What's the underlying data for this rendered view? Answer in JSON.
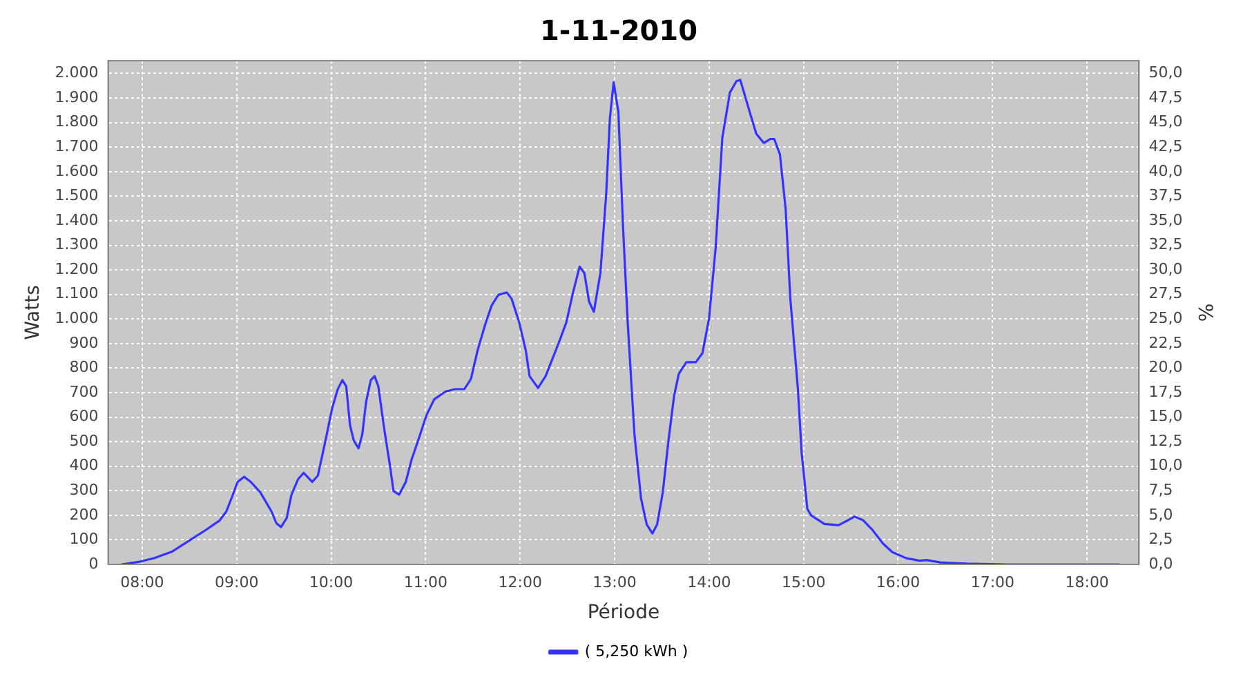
{
  "chart_data": {
    "type": "line",
    "title": "1-11-2010",
    "xlabel": "Période",
    "ylabel": "Watts",
    "y2label": "%",
    "x": [
      7.78,
      7.96,
      8.13,
      8.32,
      8.53,
      8.68,
      8.82,
      8.89,
      8.96,
      9.01,
      9.08,
      9.15,
      9.25,
      9.37,
      9.42,
      9.47,
      9.53,
      9.58,
      9.65,
      9.71,
      9.8,
      9.86,
      9.94,
      10.01,
      10.07,
      10.12,
      10.16,
      10.2,
      10.24,
      10.29,
      10.33,
      10.37,
      10.42,
      10.46,
      10.5,
      10.56,
      10.62,
      10.66,
      10.72,
      10.79,
      10.85,
      10.92,
      11.01,
      11.09,
      11.21,
      11.31,
      11.41,
      11.48,
      11.55,
      11.63,
      11.7,
      11.77,
      11.86,
      11.91,
      11.99,
      12.06,
      12.1,
      12.19,
      12.27,
      12.35,
      12.42,
      12.49,
      12.56,
      12.63,
      12.68,
      12.73,
      12.78,
      12.85,
      12.91,
      12.95,
      12.99,
      13.04,
      13.09,
      13.14,
      13.21,
      13.28,
      13.34,
      13.4,
      13.45,
      13.51,
      13.57,
      13.63,
      13.68,
      13.76,
      13.86,
      13.93,
      14,
      14.07,
      14.14,
      14.22,
      14.29,
      14.33,
      14.37,
      14.43,
      14.5,
      14.58,
      14.65,
      14.69,
      14.75,
      14.81,
      14.86,
      14.94,
      14.98,
      15.04,
      15.08,
      15.22,
      15.37,
      15.47,
      15.54,
      15.63,
      15.73,
      15.84,
      15.94,
      16.09,
      16.23,
      16.3,
      16.45,
      16.73,
      17.17,
      18.35
    ],
    "series": [
      {
        "name": "( 5,250 kWh )",
        "color": "#3333ff",
        "values": [
          0,
          10,
          26,
          53,
          105,
          142,
          179,
          215,
          284,
          336,
          357,
          336,
          294,
          215,
          168,
          152,
          189,
          284,
          347,
          373,
          336,
          362,
          504,
          635,
          714,
          751,
          725,
          567,
          504,
          473,
          530,
          662,
          751,
          767,
          725,
          557,
          410,
          299,
          284,
          336,
          425,
          504,
          609,
          672,
          704,
          714,
          714,
          756,
          872,
          977,
          1056,
          1098,
          1108,
          1082,
          987,
          872,
          767,
          719,
          767,
          845,
          914,
          987,
          1108,
          1213,
          1187,
          1071,
          1029,
          1187,
          1502,
          1817,
          1964,
          1843,
          1370,
          977,
          531,
          268,
          163,
          126,
          163,
          294,
          504,
          688,
          777,
          824,
          824,
          861,
          1003,
          1292,
          1738,
          1922,
          1969,
          1974,
          1922,
          1843,
          1754,
          1717,
          1733,
          1733,
          1670,
          1449,
          1082,
          714,
          452,
          226,
          200,
          165,
          160,
          180,
          195,
          180,
          140,
          85,
          50,
          25,
          15,
          18,
          8,
          3,
          0,
          0
        ]
      }
    ],
    "xlim": [
      7.64,
      18.55
    ],
    "xticks": [
      {
        "value": 8,
        "label": "08:00"
      },
      {
        "value": 9,
        "label": "09:00"
      },
      {
        "value": 10,
        "label": "10:00"
      },
      {
        "value": 11,
        "label": "11:00"
      },
      {
        "value": 12,
        "label": "12:00"
      },
      {
        "value": 13,
        "label": "13:00"
      },
      {
        "value": 14,
        "label": "14:00"
      },
      {
        "value": 15,
        "label": "15:00"
      },
      {
        "value": 16,
        "label": "16:00"
      },
      {
        "value": 17,
        "label": "17:00"
      },
      {
        "value": 18,
        "label": "18:00"
      }
    ],
    "ylim": [
      0,
      2052
    ],
    "yticks": [
      0,
      100,
      200,
      300,
      400,
      500,
      600,
      700,
      800,
      900,
      {
        "value": 1000,
        "label": "1.000"
      },
      {
        "value": 1100,
        "label": "1.100"
      },
      {
        "value": 1200,
        "label": "1.200"
      },
      {
        "value": 1300,
        "label": "1.300"
      },
      {
        "value": 1400,
        "label": "1.400"
      },
      {
        "value": 1500,
        "label": "1.500"
      },
      {
        "value": 1600,
        "label": "1.600"
      },
      {
        "value": 1700,
        "label": "1.700"
      },
      {
        "value": 1800,
        "label": "1.800"
      },
      {
        "value": 1900,
        "label": "1.900"
      },
      {
        "value": 2000,
        "label": "2.000"
      }
    ],
    "y2lim": [
      0,
      51.3
    ],
    "y2ticks": [
      {
        "value": 0,
        "label": "0,0"
      },
      {
        "value": 2.5,
        "label": "2,5"
      },
      {
        "value": 5,
        "label": "5,0"
      },
      {
        "value": 7.5,
        "label": "7,5"
      },
      {
        "value": 10,
        "label": "10,0"
      },
      {
        "value": 12.5,
        "label": "12,5"
      },
      {
        "value": 15,
        "label": "15,0"
      },
      {
        "value": 17.5,
        "label": "17,5"
      },
      {
        "value": 20,
        "label": "20,0"
      },
      {
        "value": 22.5,
        "label": "22,5"
      },
      {
        "value": 25,
        "label": "25,0"
      },
      {
        "value": 27.5,
        "label": "27,5"
      },
      {
        "value": 30,
        "label": "30,0"
      },
      {
        "value": 32.5,
        "label": "32,5"
      },
      {
        "value": 35,
        "label": "35,0"
      },
      {
        "value": 37.5,
        "label": "37,5"
      },
      {
        "value": 40,
        "label": "40,0"
      },
      {
        "value": 42.5,
        "label": "42,5"
      },
      {
        "value": 45,
        "label": "45,0"
      },
      {
        "value": 47.5,
        "label": "47,5"
      },
      {
        "value": 50,
        "label": "50,0"
      }
    ],
    "grid": true,
    "legend": "bottom",
    "marker": "none",
    "line_style": "solid"
  }
}
